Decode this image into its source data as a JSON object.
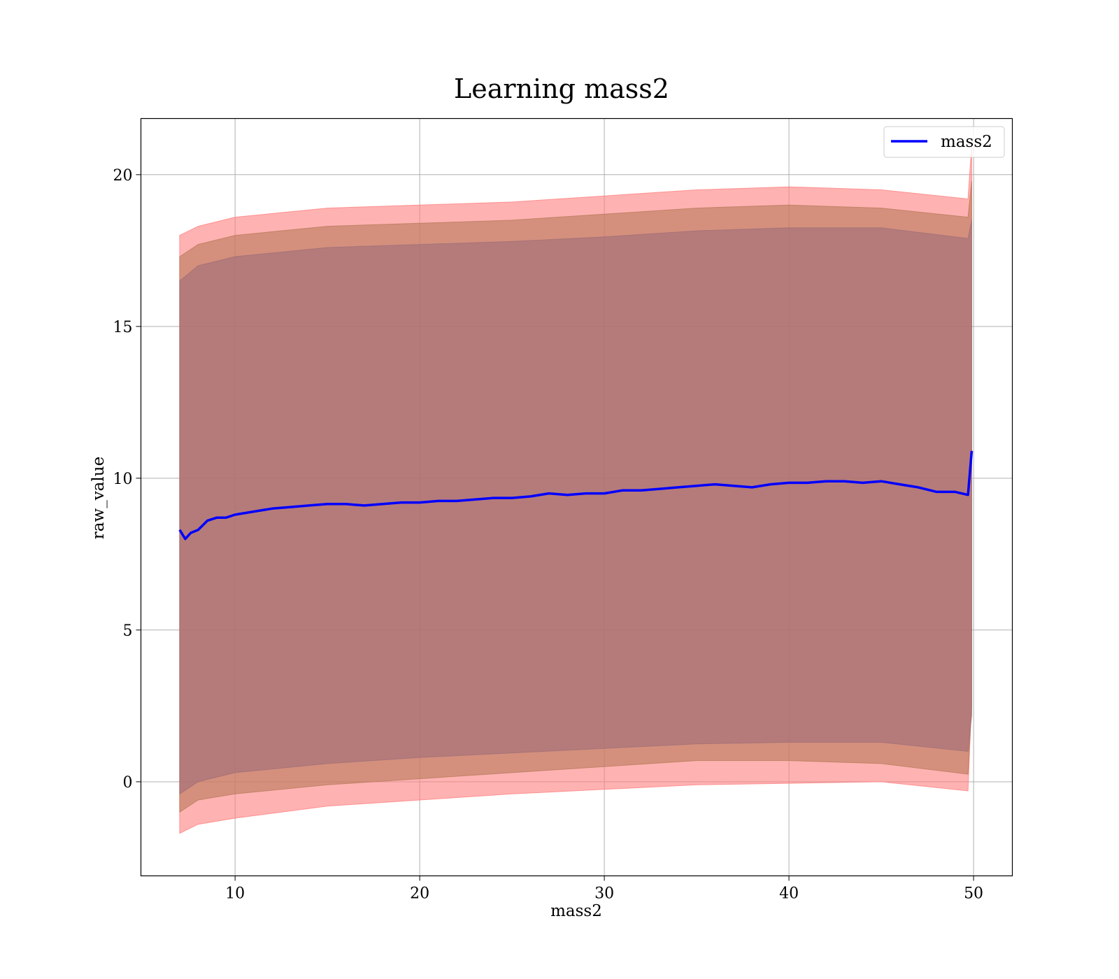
{
  "chart_data": {
    "type": "line",
    "title": "Learning mass2",
    "xlabel": "mass2",
    "ylabel": "raw_value",
    "xlim": [
      4.9,
      52.1
    ],
    "ylim": [
      -3.1,
      21.85
    ],
    "xticks": [
      10,
      20,
      30,
      40,
      50
    ],
    "yticks": [
      0,
      5,
      10,
      15,
      20
    ],
    "grid": true,
    "legend": {
      "position": "top-right",
      "entries": [
        "mass2"
      ]
    },
    "series": [
      {
        "name": "mass2",
        "color": "#0000ff",
        "x": [
          7.0,
          7.3,
          7.6,
          8.0,
          8.5,
          9.0,
          9.5,
          10.0,
          11.0,
          12.0,
          13.0,
          14.0,
          15.0,
          16.0,
          17.0,
          18.0,
          19.0,
          20.0,
          21.0,
          22.0,
          23.0,
          24.0,
          25.0,
          26.0,
          27.0,
          28.0,
          29.0,
          30.0,
          31.0,
          32.0,
          33.0,
          34.0,
          35.0,
          36.0,
          37.0,
          38.0,
          39.0,
          40.0,
          41.0,
          42.0,
          43.0,
          44.0,
          45.0,
          46.0,
          47.0,
          48.0,
          49.0,
          49.7,
          49.9
        ],
        "y": [
          8.3,
          8.0,
          8.2,
          8.3,
          8.6,
          8.7,
          8.7,
          8.8,
          8.9,
          9.0,
          9.05,
          9.1,
          9.15,
          9.15,
          9.1,
          9.15,
          9.2,
          9.2,
          9.25,
          9.25,
          9.3,
          9.35,
          9.35,
          9.4,
          9.5,
          9.45,
          9.5,
          9.5,
          9.6,
          9.6,
          9.65,
          9.7,
          9.75,
          9.8,
          9.75,
          9.7,
          9.8,
          9.85,
          9.85,
          9.9,
          9.9,
          9.85,
          9.9,
          9.8,
          9.7,
          9.55,
          9.55,
          9.45,
          10.9
        ]
      }
    ],
    "bands": [
      {
        "color": "#ff7f7f",
        "x": [
          7.0,
          8.0,
          10.0,
          15.0,
          20.0,
          25.0,
          30.0,
          35.0,
          40.0,
          45.0,
          49.7,
          49.9
        ],
        "lower": [
          -1.7,
          -1.4,
          -1.2,
          -0.8,
          -0.6,
          -0.4,
          -0.25,
          -0.1,
          -0.05,
          0.0,
          -0.3,
          2.8
        ],
        "upper": [
          18.0,
          18.3,
          18.6,
          18.9,
          19.0,
          19.1,
          19.3,
          19.5,
          19.6,
          19.5,
          19.2,
          21.0
        ]
      },
      {
        "color": "#b87a5a",
        "x": [
          7.0,
          8.0,
          10.0,
          15.0,
          20.0,
          25.0,
          30.0,
          35.0,
          40.0,
          45.0,
          49.7,
          49.9
        ],
        "lower": [
          -1.0,
          -0.6,
          -0.4,
          -0.1,
          0.1,
          0.3,
          0.5,
          0.7,
          0.7,
          0.6,
          0.25,
          2.5
        ],
        "upper": [
          17.3,
          17.7,
          18.0,
          18.3,
          18.4,
          18.5,
          18.7,
          18.9,
          19.0,
          18.9,
          18.6,
          19.8
        ]
      },
      {
        "color": "#a06e78",
        "x": [
          7.0,
          8.0,
          10.0,
          15.0,
          20.0,
          25.0,
          30.0,
          35.0,
          40.0,
          45.0,
          49.7,
          49.9
        ],
        "lower": [
          -0.4,
          0.0,
          0.3,
          0.6,
          0.8,
          0.95,
          1.1,
          1.25,
          1.3,
          1.3,
          1.0,
          2.2
        ],
        "upper": [
          16.5,
          17.0,
          17.3,
          17.6,
          17.7,
          17.8,
          17.95,
          18.15,
          18.25,
          18.25,
          17.9,
          18.5
        ]
      }
    ]
  }
}
